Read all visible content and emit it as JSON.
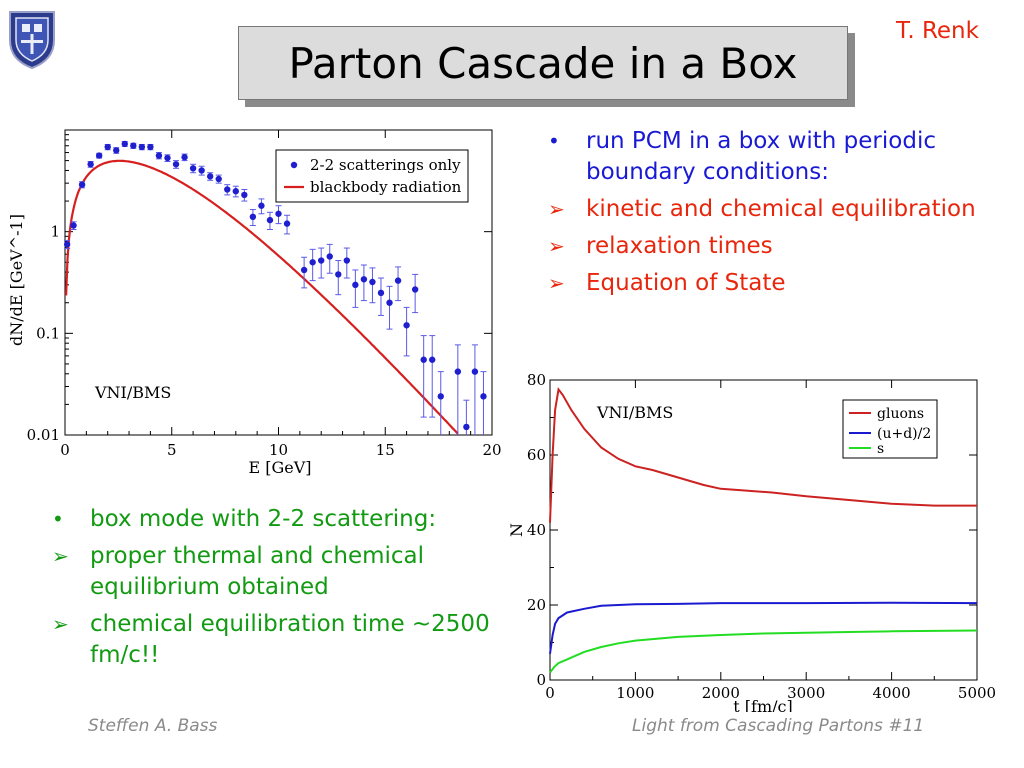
{
  "slide": {
    "title": "Parton Cascade in a Box",
    "author": "T. Renk",
    "footer_left": "Steffen A. Bass",
    "footer_right": "Light from Cascading Partons  #11"
  },
  "right_bullets": [
    {
      "marker": "•",
      "text": "run PCM in a box with periodic boundary conditions:",
      "color": "#1a1ad4"
    },
    {
      "marker": "➢",
      "text": "kinetic and chemical equilibration",
      "color": "#e8260c"
    },
    {
      "marker": "➢",
      "text": "relaxation times",
      "color": "#e8260c"
    },
    {
      "marker": "➢",
      "text": "Equation of State",
      "color": "#e8260c"
    }
  ],
  "left_bullets": [
    {
      "marker": "•",
      "text": "box mode with 2-2 scattering:",
      "color": "#139a13"
    },
    {
      "marker": "➢",
      "text": "proper thermal and chemical equilibrium obtained",
      "color": "#139a13"
    },
    {
      "marker": "➢",
      "text": "chemical equilibration time ~2500 fm/c!!",
      "color": "#139a13"
    }
  ],
  "chart_data": [
    {
      "type": "scatter",
      "annotation": "VNI/BMS",
      "xlabel": "E [GeV]",
      "ylabel": "dN/dE [GeV^-1]",
      "xlim": [
        0,
        20
      ],
      "ylim": [
        0.01,
        10
      ],
      "yscale": "log",
      "xticks": [
        0,
        5,
        10,
        15,
        20
      ],
      "yticks": [
        {
          "v": 0.01,
          "label": "0.01"
        },
        {
          "v": 0.1,
          "label": "0.1"
        },
        {
          "v": 1,
          "label": "1"
        }
      ],
      "legend_position": "top-right",
      "series": [
        {
          "name": "2-2 scatterings only",
          "color": "#1f1fd0",
          "points": [
            [
              0.1,
              0.75,
              0.07
            ],
            [
              0.4,
              1.15,
              0.1
            ],
            [
              0.8,
              2.9,
              0.2
            ],
            [
              1.2,
              4.6,
              0.3
            ],
            [
              1.6,
              5.6,
              0.3
            ],
            [
              2.0,
              6.8,
              0.4
            ],
            [
              2.4,
              6.3,
              0.4
            ],
            [
              2.8,
              7.3,
              0.4
            ],
            [
              3.2,
              7.0,
              0.4
            ],
            [
              3.6,
              6.8,
              0.4
            ],
            [
              4.0,
              6.8,
              0.4
            ],
            [
              4.4,
              5.6,
              0.4
            ],
            [
              4.8,
              5.3,
              0.4
            ],
            [
              5.2,
              4.6,
              0.4
            ],
            [
              5.6,
              5.4,
              0.4
            ],
            [
              6.0,
              4.2,
              0.4
            ],
            [
              6.4,
              4.0,
              0.4
            ],
            [
              6.8,
              3.5,
              0.3
            ],
            [
              7.2,
              3.3,
              0.3
            ],
            [
              7.6,
              2.6,
              0.3
            ],
            [
              8.0,
              2.5,
              0.3
            ],
            [
              8.4,
              2.3,
              0.3
            ],
            [
              8.8,
              1.4,
              0.25
            ],
            [
              9.2,
              1.8,
              0.3
            ],
            [
              9.6,
              1.3,
              0.25
            ],
            [
              10.0,
              1.5,
              0.3
            ],
            [
              10.4,
              1.2,
              0.25
            ],
            [
              11.2,
              0.42,
              0.14
            ],
            [
              11.6,
              0.5,
              0.17
            ],
            [
              12.0,
              0.52,
              0.17
            ],
            [
              12.4,
              0.57,
              0.18
            ],
            [
              12.8,
              0.38,
              0.14
            ],
            [
              13.2,
              0.52,
              0.17
            ],
            [
              13.6,
              0.3,
              0.12
            ],
            [
              14.0,
              0.34,
              0.13
            ],
            [
              14.4,
              0.32,
              0.12
            ],
            [
              14.8,
              0.25,
              0.1
            ],
            [
              15.2,
              0.2,
              0.09
            ],
            [
              15.6,
              0.33,
              0.12
            ],
            [
              16.0,
              0.12,
              0.06
            ],
            [
              16.4,
              0.27,
              0.11
            ],
            [
              16.8,
              0.055,
              0.04
            ],
            [
              17.2,
              0.055,
              0.04
            ],
            [
              17.6,
              0.024,
              0.018
            ],
            [
              18.4,
              0.042,
              0.035
            ],
            [
              18.8,
              0.012,
              0.01
            ],
            [
              19.2,
              0.042,
              0.035
            ],
            [
              19.6,
              0.024,
              0.018
            ]
          ]
        },
        {
          "name": "blackbody radiation",
          "color": "#d62020",
          "curve": {
            "type": "blackbody",
            "amplitude": 3.0,
            "temperature": 1.6,
            "xmin": 0.05,
            "xmax": 20
          }
        }
      ]
    },
    {
      "type": "line",
      "annotation": "VNI/BMS",
      "xlabel": "t [fm/c]",
      "ylabel": "N",
      "xlim": [
        0,
        5000
      ],
      "ylim": [
        0,
        80
      ],
      "xticks": [
        0,
        1000,
        2000,
        3000,
        4000,
        5000
      ],
      "yticks": [
        0,
        20,
        40,
        60,
        80
      ],
      "legend_position": "top-right",
      "series": [
        {
          "name": "gluons",
          "color": "#cc2222",
          "points": [
            [
              0,
              42
            ],
            [
              30,
              60
            ],
            [
              60,
              72
            ],
            [
              100,
              77.5
            ],
            [
              150,
              76
            ],
            [
              250,
              72
            ],
            [
              400,
              67
            ],
            [
              600,
              62
            ],
            [
              800,
              59
            ],
            [
              1000,
              57
            ],
            [
              1200,
              56
            ],
            [
              1500,
              54
            ],
            [
              1800,
              52
            ],
            [
              2000,
              51
            ],
            [
              2300,
              50.5
            ],
            [
              2600,
              50
            ],
            [
              3000,
              49
            ],
            [
              3500,
              48
            ],
            [
              4000,
              47
            ],
            [
              4500,
              46.5
            ],
            [
              5000,
              46.5
            ]
          ]
        },
        {
          "name": "(u+d)/2",
          "color": "#1a1ad0",
          "points": [
            [
              0,
              7
            ],
            [
              30,
              12
            ],
            [
              60,
              15
            ],
            [
              100,
              16.5
            ],
            [
              200,
              18
            ],
            [
              400,
              19
            ],
            [
              600,
              19.8
            ],
            [
              800,
              20
            ],
            [
              1000,
              20.2
            ],
            [
              1500,
              20.3
            ],
            [
              2000,
              20.5
            ],
            [
              3000,
              20.5
            ],
            [
              4000,
              20.6
            ],
            [
              5000,
              20.5
            ]
          ]
        },
        {
          "name": "s",
          "color": "#22dd22",
          "points": [
            [
              0,
              2
            ],
            [
              50,
              3.5
            ],
            [
              100,
              4.5
            ],
            [
              200,
              5.5
            ],
            [
              400,
              7.5
            ],
            [
              600,
              8.8
            ],
            [
              800,
              9.8
            ],
            [
              1000,
              10.5
            ],
            [
              1500,
              11.5
            ],
            [
              2000,
              12.0
            ],
            [
              2500,
              12.4
            ],
            [
              3000,
              12.6
            ],
            [
              3500,
              12.8
            ],
            [
              4000,
              13.0
            ],
            [
              5000,
              13.2
            ]
          ]
        }
      ]
    }
  ]
}
